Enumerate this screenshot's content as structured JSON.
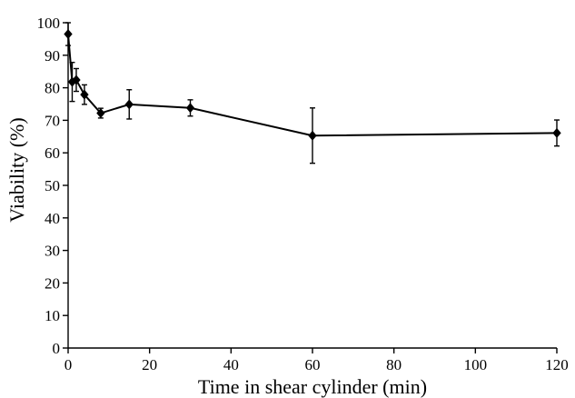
{
  "chart_data": {
    "type": "line",
    "title": "",
    "xlabel": "Time in shear cylinder (min)",
    "ylabel": "Viability (%)",
    "xlim": [
      0,
      120
    ],
    "ylim": [
      0,
      100
    ],
    "x_ticks": [
      "0",
      "20",
      "40",
      "60",
      "80",
      "100",
      "120"
    ],
    "y_ticks": [
      "0",
      "10",
      "20",
      "30",
      "40",
      "50",
      "60",
      "70",
      "80",
      "90",
      "100"
    ],
    "grid": false,
    "legend": "none",
    "marker": "diamond",
    "color": "#000000",
    "series": [
      {
        "x": [
          0,
          1,
          2,
          4,
          8,
          15,
          30,
          60,
          120
        ],
        "y": [
          96.5,
          81.8,
          82.4,
          77.9,
          72.2,
          74.9,
          73.8,
          65.3,
          66.1
        ],
        "error": [
          3.5,
          6.0,
          3.5,
          3.0,
          1.5,
          4.5,
          2.5,
          8.5,
          4.0
        ]
      }
    ]
  }
}
